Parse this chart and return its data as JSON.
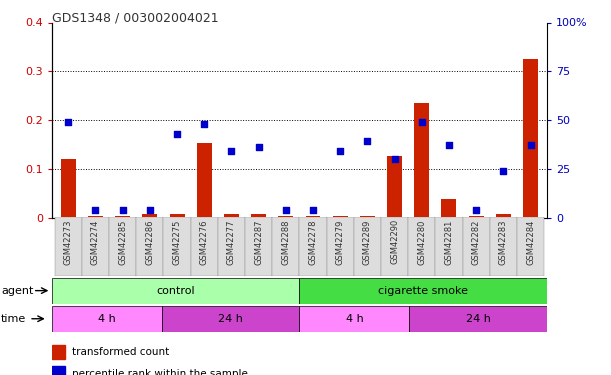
{
  "title": "GDS1348 / 003002004021",
  "samples": [
    "GSM42273",
    "GSM42274",
    "GSM42285",
    "GSM42286",
    "GSM42275",
    "GSM42276",
    "GSM42277",
    "GSM42287",
    "GSM42288",
    "GSM42278",
    "GSM42279",
    "GSM42289",
    "GSM42290",
    "GSM42280",
    "GSM42281",
    "GSM42282",
    "GSM42283",
    "GSM42284"
  ],
  "red_values": [
    0.12,
    0.004,
    0.004,
    0.008,
    0.008,
    0.152,
    0.008,
    0.008,
    0.004,
    0.004,
    0.004,
    0.004,
    0.127,
    0.235,
    0.038,
    0.004,
    0.008,
    0.325
  ],
  "blue_values": [
    49,
    4,
    4,
    4,
    43,
    48,
    34,
    36,
    4,
    4,
    34,
    39,
    30,
    49,
    37,
    4,
    24,
    37
  ],
  "ylim_left": [
    0,
    0.4
  ],
  "ylim_right": [
    0,
    100
  ],
  "yticks_left": [
    0,
    0.1,
    0.2,
    0.3,
    0.4
  ],
  "yticks_right": [
    0,
    25,
    50,
    75,
    100
  ],
  "ytick_labels_left": [
    "0",
    "0.1",
    "0.2",
    "0.3",
    "0.4"
  ],
  "ytick_labels_right": [
    "0",
    "25",
    "50",
    "75",
    "100%"
  ],
  "hlines": [
    0.1,
    0.2,
    0.3
  ],
  "agent_groups": [
    {
      "label": "control",
      "start": 0,
      "end": 8,
      "color": "#AAFFAA"
    },
    {
      "label": "cigarette smoke",
      "start": 9,
      "end": 17,
      "color": "#44DD44"
    }
  ],
  "time_groups": [
    {
      "label": "4 h",
      "start": 0,
      "end": 3,
      "color": "#FF88FF"
    },
    {
      "label": "24 h",
      "start": 4,
      "end": 8,
      "color": "#CC44CC"
    },
    {
      "label": "4 h",
      "start": 9,
      "end": 12,
      "color": "#FF88FF"
    },
    {
      "label": "24 h",
      "start": 13,
      "end": 17,
      "color": "#CC44CC"
    }
  ],
  "legend_red": "transformed count",
  "legend_blue": "percentile rank within the sample",
  "red_color": "#CC2200",
  "blue_color": "#0000CC",
  "bar_width": 0.55,
  "dot_size": 22,
  "tick_label_color_left": "#CC0000",
  "tick_label_color_right": "#0000BB",
  "background_color": "#FFFFFF",
  "plot_bg_color": "#FFFFFF",
  "agent_label": "agent",
  "time_label": "time",
  "xtick_bg": "#DDDDDD"
}
